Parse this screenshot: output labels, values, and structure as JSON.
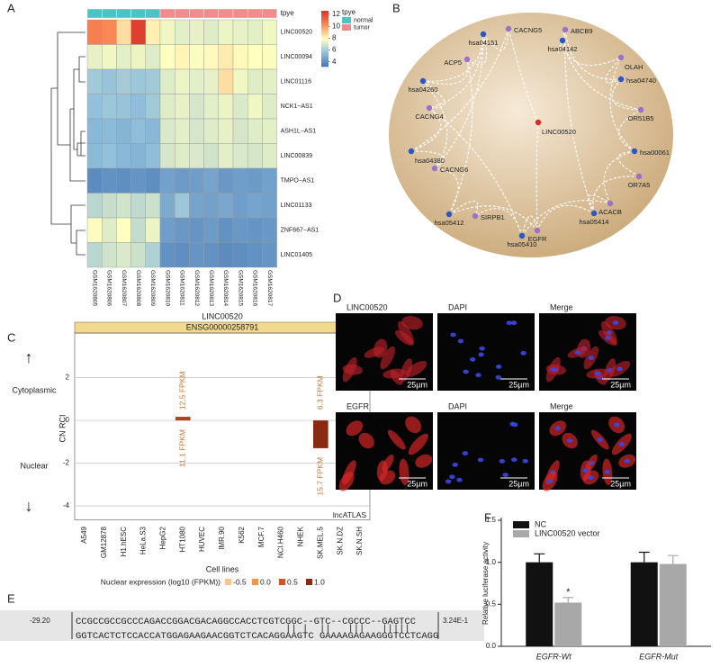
{
  "panel_labels": [
    "A",
    "B",
    "C",
    "D",
    "E",
    "F"
  ],
  "chart_data": [
    {
      "type": "heatmap",
      "rows": [
        "LINC00520",
        "LINC00094",
        "LINC01116",
        "NCK1−AS1",
        "ASH1L−AS1",
        "LINC00839",
        "TMPO−AS1",
        "LINC01133",
        "ZNF667−AS1",
        "LINC01405"
      ],
      "columns": [
        "GSM1620805",
        "GSM1620806",
        "GSM1620807",
        "GSM1620808",
        "GSM1620809",
        "GSM1620810",
        "GSM1620811",
        "GSM1620812",
        "GSM1620813",
        "GSM1620814",
        "GSM1620815",
        "GSM1620816",
        "GSM1620817"
      ],
      "values": [
        [
          10.6,
          10.4,
          8.6,
          12.2,
          8.2,
          7.6,
          7.3,
          7.4,
          7.2,
          7.5,
          7.4,
          7.3,
          7.6
        ],
        [
          7.4,
          7.6,
          7.3,
          7.5,
          7.2,
          7.9,
          8.1,
          7.8,
          8.0,
          8.3,
          8.0,
          7.9,
          7.8
        ],
        [
          5.9,
          5.7,
          6.0,
          5.8,
          5.9,
          7.2,
          7.5,
          7.3,
          7.4,
          8.6,
          7.6,
          7.2,
          7.3
        ],
        [
          5.6,
          5.8,
          5.7,
          5.5,
          5.9,
          7.2,
          7.4,
          7.0,
          7.3,
          7.5,
          7.1,
          7.6,
          7.2
        ],
        [
          5.3,
          5.4,
          5.2,
          5.5,
          5.3,
          7.1,
          7.3,
          7.0,
          7.2,
          7.4,
          7.0,
          7.2,
          7.3
        ],
        [
          5.4,
          5.6,
          5.3,
          5.2,
          5.5,
          7.0,
          7.2,
          7.1,
          6.9,
          7.3,
          7.1,
          7.0,
          7.2
        ],
        [
          3.9,
          4.1,
          4.0,
          4.2,
          4.0,
          4.6,
          4.4,
          4.5,
          4.7,
          4.3,
          4.5,
          4.4,
          4.6
        ],
        [
          6.4,
          6.7,
          6.9,
          6.5,
          6.8,
          4.9,
          5.8,
          4.7,
          4.6,
          4.8,
          4.5,
          4.7,
          4.6
        ],
        [
          7.8,
          7.2,
          7.9,
          6.6,
          7.5,
          4.5,
          4.3,
          4.2,
          4.4,
          4.1,
          4.3,
          4.2,
          4.3
        ],
        [
          6.4,
          6.9,
          7.1,
          6.8,
          6.2,
          4.1,
          4.0,
          4.2,
          4.1,
          3.9,
          4.0,
          4.1,
          4.2
        ]
      ],
      "clim": [
        3.2,
        12.6
      ],
      "colors": [
        "#4575b4",
        "#91bfdb",
        "#ffffbf",
        "#fc8d59",
        "#d73027"
      ],
      "cticks": [
        4,
        6,
        8,
        10,
        12
      ],
      "annotation_label": "tpye",
      "groups": [
        {
          "name": "normal",
          "color": "#4cc4c4"
        },
        {
          "name": "tumor",
          "color": "#f28c8c"
        }
      ],
      "column_group": [
        "normal",
        "normal",
        "normal",
        "normal",
        "normal",
        "tumor",
        "tumor",
        "tumor",
        "tumor",
        "tumor",
        "tumor",
        "tumor",
        "tumor"
      ]
    },
    {
      "type": "bar",
      "title": "LINC00520",
      "subtitle": "ENSG00000258791",
      "ylabel": "CN RCI",
      "xlabel": "Cell lines",
      "categories": [
        "A549",
        "GM12878",
        "H1.hESC",
        "HeLa.S3",
        "HepG2",
        "HT1080",
        "HUVEC",
        "IMR.90",
        "K562",
        "MCF.7",
        "NCI.H460",
        "NHEK",
        "SK.MEL.5",
        "SK.N.DZ",
        "SK.N.SH"
      ],
      "values": [
        null,
        null,
        null,
        null,
        null,
        0.17,
        null,
        null,
        null,
        null,
        null,
        null,
        -1.3,
        null,
        null
      ],
      "colors": [
        null,
        null,
        null,
        null,
        null,
        "#b5401e",
        null,
        null,
        null,
        null,
        null,
        null,
        "#8b2a12",
        null,
        null
      ],
      "cytoplasmic_labels": [
        null,
        null,
        null,
        null,
        null,
        "12.5 FPKM",
        null,
        null,
        null,
        null,
        null,
        null,
        "6.3 FPKM",
        null,
        null
      ],
      "nuclear_labels": [
        null,
        null,
        null,
        null,
        null,
        "11.1 FPKM",
        null,
        null,
        null,
        null,
        null,
        null,
        "15.7 FPKM",
        null,
        null
      ],
      "ylim": [
        -4.4,
        3.5
      ],
      "yticks": [
        -4,
        -2,
        0,
        2
      ],
      "grid": true,
      "region_labels": [
        "Cytoplasmic",
        "Nuclear"
      ],
      "arrows": [
        "↑",
        "↓"
      ],
      "source": "lncATLAS",
      "legend": {
        "title": "Nuclear expression (log10 (FPKM))",
        "items": [
          {
            "label": "-0.5",
            "color": "#f7c690"
          },
          {
            "label": "0.0",
            "color": "#f0954a"
          },
          {
            "label": "0.5",
            "color": "#d2552a"
          },
          {
            "label": "1.0",
            "color": "#8b2a12"
          }
        ]
      }
    },
    {
      "type": "bar",
      "ylabel": "Relative luciferase activity",
      "categories": [
        "EGFR-Wt",
        "EGFR-Mut"
      ],
      "series": [
        {
          "name": "NC",
          "color": "#111111",
          "values": [
            1.0,
            1.0
          ],
          "errors": [
            0.1,
            0.12
          ]
        },
        {
          "name": "LINC00520 vector",
          "color": "#a8a8a8",
          "values": [
            0.52,
            0.98
          ],
          "errors": [
            0.06,
            0.1
          ],
          "significance": [
            "*",
            null
          ]
        }
      ],
      "ylim": [
        0,
        1.5
      ],
      "yticks": [
        {
          "value": 0,
          "label": "0.0"
        },
        0.5,
        {
          "value": 1,
          "label": "1.0"
        },
        1.5
      ]
    }
  ],
  "network": {
    "nodes": [
      {
        "label": "CACNG5",
        "color": "#9b72c8"
      },
      {
        "label": "hsa04151",
        "color": "#2a56c6"
      },
      {
        "label": "ABCB9",
        "color": "#9b72c8"
      },
      {
        "label": "hsa04142",
        "color": "#2a56c6"
      },
      {
        "label": "ACP5",
        "color": "#9b72c8"
      },
      {
        "label": "hsa04260",
        "color": "#2a56c6"
      },
      {
        "label": "OLAH",
        "color": "#9b72c8"
      },
      {
        "label": "hsa04740",
        "color": "#2a56c6"
      },
      {
        "label": "OR51B5",
        "color": "#9b72c8"
      },
      {
        "label": "CACNG4",
        "color": "#9b72c8"
      },
      {
        "label": "LINC00520",
        "color": "#e02828"
      },
      {
        "label": "hsa04380",
        "color": "#2a56c6"
      },
      {
        "label": "hsa00061",
        "color": "#2a56c6"
      },
      {
        "label": "CACNG6",
        "color": "#9b72c8"
      },
      {
        "label": "OR7A5",
        "color": "#9b72c8"
      },
      {
        "label": "ACACB",
        "color": "#9b72c8"
      },
      {
        "label": "hsa05412",
        "color": "#2a56c6"
      },
      {
        "label": "SIRPB1",
        "color": "#9b72c8"
      },
      {
        "label": "hsa05414",
        "color": "#2a56c6"
      },
      {
        "label": "EGFR",
        "color": "#9b72c8"
      },
      {
        "label": "hsa05410",
        "color": "#2a56c6"
      }
    ]
  },
  "micrographs": {
    "rows": [
      [
        "LINC00520",
        "DAPI",
        "Merge"
      ],
      [
        "EGFR",
        "DAPI",
        "Merge"
      ]
    ],
    "scale_bar": "25µm"
  },
  "alignment": {
    "left_score": "-29.20",
    "right_score": "3.24E-1",
    "query": "CCGCCGCCGCCCAGACCGGACGACAGGCCACCTCGTCGGC--GTC--CGCCC--GAGTCC",
    "matches": "                                     || |  ||   |||   |||||",
    "target": "GGTCACTCTCCACCATGGAGAAGAACGGTCTCACAGGAAGTC GAAAAGAGAAGGGTCCTCAGG"
  }
}
